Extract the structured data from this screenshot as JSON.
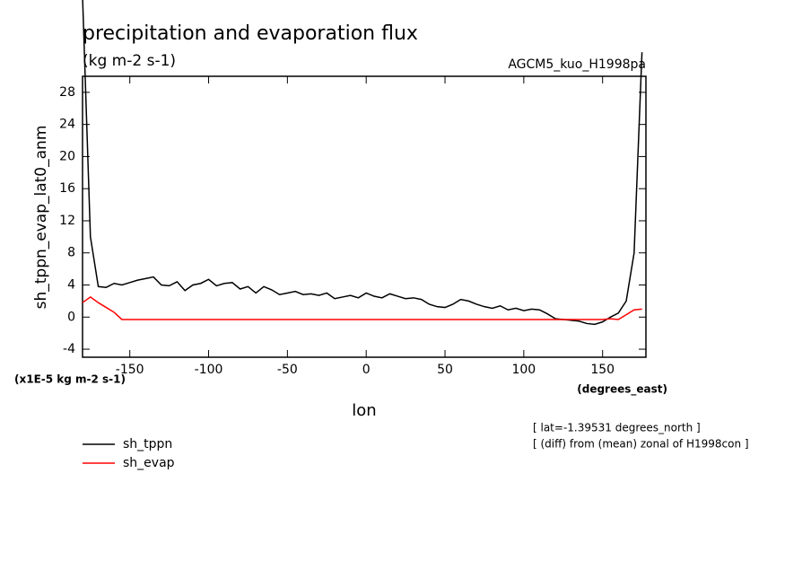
{
  "chart_data": {
    "type": "line",
    "title": "precipitation and evaporation flux",
    "subtitle": "(kg m-2 s-1)",
    "run_label": "AGCM5_kuo_H1998pa",
    "y_label": "sh_tppn_evap_lat0_anm",
    "y_units": "(x1E-5 kg m-2 s-1)",
    "x_label": "lon",
    "x_units": "(degrees_east)",
    "annotations": [
      "[ lat=-1.39531 degrees_north ]",
      "[ (diff) from (mean) zonal of H1998con ]"
    ],
    "xlim": [
      -180,
      177.5
    ],
    "xticks": [
      -150,
      -100,
      -50,
      0,
      50,
      100,
      150
    ],
    "ylim": [
      -5,
      30
    ],
    "yticks": [
      -4,
      0,
      4,
      8,
      12,
      16,
      20,
      24,
      28
    ],
    "x": [
      -180,
      -175,
      -170,
      -165,
      -160,
      -155,
      -150,
      -145,
      -140,
      -135,
      -130,
      -125,
      -120,
      -115,
      -110,
      -105,
      -100,
      -95,
      -90,
      -85,
      -80,
      -75,
      -70,
      -65,
      -60,
      -55,
      -50,
      -45,
      -40,
      -35,
      -30,
      -25,
      -20,
      -15,
      -10,
      -5,
      0,
      5,
      10,
      15,
      20,
      25,
      30,
      35,
      40,
      45,
      50,
      55,
      60,
      65,
      70,
      75,
      80,
      85,
      90,
      95,
      100,
      105,
      110,
      115,
      120,
      125,
      130,
      135,
      140,
      145,
      150,
      155,
      160,
      165,
      170,
      175
    ],
    "series": [
      {
        "name": "sh_tppn",
        "color": "#000000",
        "values": [
          40,
          10,
          3.8,
          3.7,
          4.2,
          4.0,
          4.3,
          4.6,
          4.8,
          5.0,
          4.0,
          3.9,
          4.4,
          3.3,
          4.0,
          4.2,
          4.7,
          3.9,
          4.2,
          4.3,
          3.5,
          3.8,
          3.0,
          3.8,
          3.4,
          2.8,
          3.0,
          3.2,
          2.8,
          2.9,
          2.7,
          3.0,
          2.3,
          2.5,
          2.7,
          2.4,
          3.0,
          2.6,
          2.4,
          2.9,
          2.6,
          2.3,
          2.4,
          2.2,
          1.6,
          1.3,
          1.2,
          1.6,
          2.2,
          2.0,
          1.6,
          1.3,
          1.1,
          1.4,
          0.9,
          1.1,
          0.8,
          1.0,
          0.9,
          0.4,
          -0.2,
          -0.3,
          -0.4,
          -0.5,
          -0.8,
          -0.9,
          -0.6,
          0,
          0.5,
          2.0,
          8,
          33
        ]
      },
      {
        "name": "sh_evap",
        "color": "#ff0000",
        "values": [
          1.8,
          2.5,
          1.8,
          1.2,
          0.6,
          -0.3,
          -0.3,
          -0.3,
          -0.3,
          -0.3,
          -0.3,
          -0.3,
          -0.3,
          -0.3,
          -0.3,
          -0.3,
          -0.3,
          -0.3,
          -0.3,
          -0.3,
          -0.3,
          -0.3,
          -0.3,
          -0.3,
          -0.3,
          -0.3,
          -0.3,
          -0.3,
          -0.3,
          -0.3,
          -0.3,
          -0.3,
          -0.3,
          -0.3,
          -0.3,
          -0.3,
          -0.3,
          -0.3,
          -0.3,
          -0.3,
          -0.3,
          -0.3,
          -0.3,
          -0.3,
          -0.3,
          -0.3,
          -0.3,
          -0.3,
          -0.3,
          -0.3,
          -0.3,
          -0.3,
          -0.3,
          -0.3,
          -0.3,
          -0.3,
          -0.3,
          -0.3,
          -0.3,
          -0.3,
          -0.3,
          -0.3,
          -0.3,
          -0.3,
          -0.3,
          -0.3,
          -0.3,
          -0.2,
          -0.3,
          0.3,
          0.9,
          1.0
        ]
      }
    ]
  }
}
